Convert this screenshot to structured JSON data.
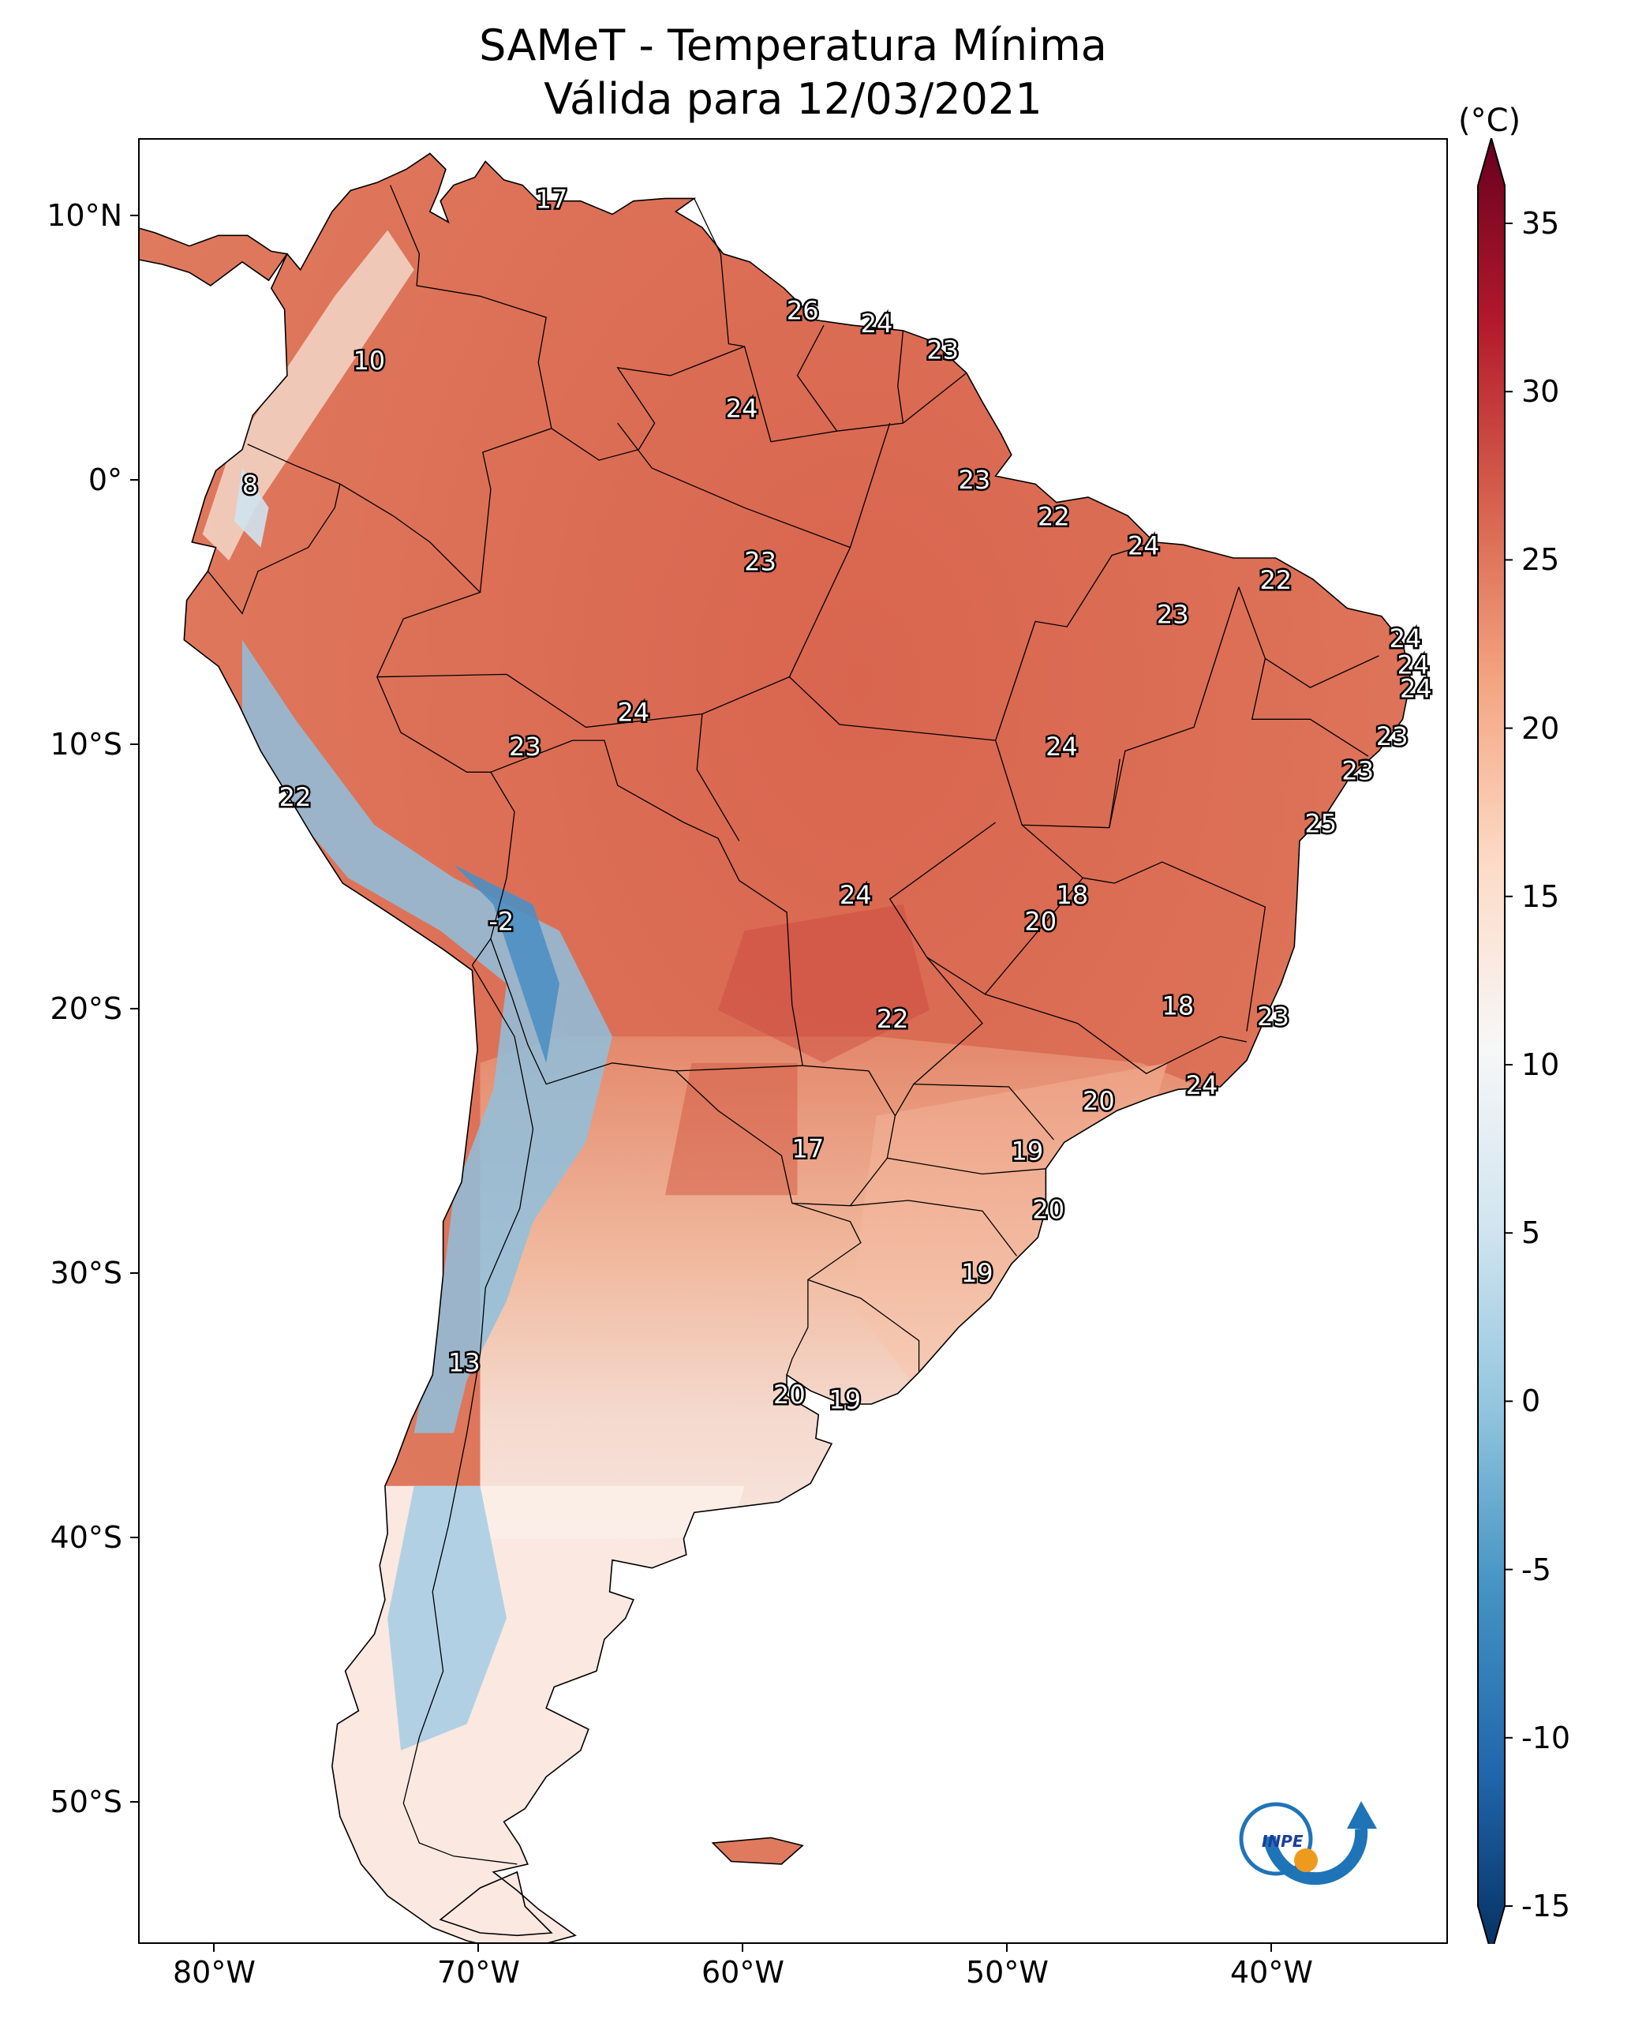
{
  "title": {
    "line1": "SAMeT - Temperatura Mínima",
    "line2": "Válida para 12/03/2021"
  },
  "axes": {
    "lon_labels": [
      "80°W",
      "70°W",
      "60°W",
      "50°W",
      "40°W"
    ],
    "lat_labels": [
      "10°N",
      "0°",
      "10°S",
      "20°S",
      "30°S",
      "40°S",
      "50°S"
    ]
  },
  "colorbar": {
    "unit": "(°C)",
    "ticks": [
      "35",
      "30",
      "25",
      "20",
      "15",
      "10",
      "5",
      "0",
      "-5",
      "-10",
      "-15"
    ],
    "range": [
      -15,
      35
    ],
    "colormap": [
      "#053061",
      "#2166ac",
      "#4393c3",
      "#92c5de",
      "#d1e5f0",
      "#f7f7f7",
      "#fddbc7",
      "#f4a582",
      "#d6604d",
      "#b2182b",
      "#67001f"
    ]
  },
  "temperature_labels": [
    {
      "value": "17",
      "lon": -67.3,
      "lat": 10.6
    },
    {
      "value": "26",
      "lon": -57.8,
      "lat": 6.4
    },
    {
      "value": "24",
      "lon": -55.0,
      "lat": 5.9
    },
    {
      "value": "23",
      "lon": -52.5,
      "lat": 4.9
    },
    {
      "value": "10",
      "lon": -74.2,
      "lat": 4.5
    },
    {
      "value": "24",
      "lon": -60.1,
      "lat": 2.7
    },
    {
      "value": "8",
      "lon": -78.7,
      "lat": -0.2
    },
    {
      "value": "23",
      "lon": -51.3,
      "lat": 0.0
    },
    {
      "value": "22",
      "lon": -48.3,
      "lat": -1.4
    },
    {
      "value": "24",
      "lon": -44.9,
      "lat": -2.5
    },
    {
      "value": "23",
      "lon": -59.4,
      "lat": -3.1
    },
    {
      "value": "22",
      "lon": -39.9,
      "lat": -3.8
    },
    {
      "value": "23",
      "lon": -43.8,
      "lat": -5.1
    },
    {
      "value": "24",
      "lon": -35.0,
      "lat": -6.0
    },
    {
      "value": "24",
      "lon": -34.7,
      "lat": -7.0
    },
    {
      "value": "24",
      "lon": -34.6,
      "lat": -7.9
    },
    {
      "value": "24",
      "lon": -64.2,
      "lat": -8.8
    },
    {
      "value": "23",
      "lon": -35.5,
      "lat": -9.7
    },
    {
      "value": "23",
      "lon": -68.3,
      "lat": -10.1
    },
    {
      "value": "24",
      "lon": -48.0,
      "lat": -10.1
    },
    {
      "value": "23",
      "lon": -36.8,
      "lat": -11.0
    },
    {
      "value": "22",
      "lon": -77.0,
      "lat": -12.0
    },
    {
      "value": "25",
      "lon": -38.2,
      "lat": -13.0
    },
    {
      "value": "24",
      "lon": -55.8,
      "lat": -15.7
    },
    {
      "value": "18",
      "lon": -47.6,
      "lat": -15.7
    },
    {
      "value": "20",
      "lon": -48.8,
      "lat": -16.7
    },
    {
      "value": "-2",
      "lon": -69.2,
      "lat": -16.7
    },
    {
      "value": "18",
      "lon": -43.6,
      "lat": -19.9
    },
    {
      "value": "23",
      "lon": -40.0,
      "lat": -20.3
    },
    {
      "value": "22",
      "lon": -54.4,
      "lat": -20.4
    },
    {
      "value": "24",
      "lon": -42.7,
      "lat": -22.9
    },
    {
      "value": "20",
      "lon": -46.6,
      "lat": -23.5
    },
    {
      "value": "17",
      "lon": -57.6,
      "lat": -25.3
    },
    {
      "value": "19",
      "lon": -49.3,
      "lat": -25.4
    },
    {
      "value": "20",
      "lon": -48.5,
      "lat": -27.6
    },
    {
      "value": "19",
      "lon": -51.2,
      "lat": -30.0
    },
    {
      "value": "13",
      "lon": -70.6,
      "lat": -33.4
    },
    {
      "value": "20",
      "lon": -58.3,
      "lat": -34.6
    },
    {
      "value": "19",
      "lon": -56.2,
      "lat": -34.8
    }
  ],
  "logo": {
    "text": "INPE"
  }
}
